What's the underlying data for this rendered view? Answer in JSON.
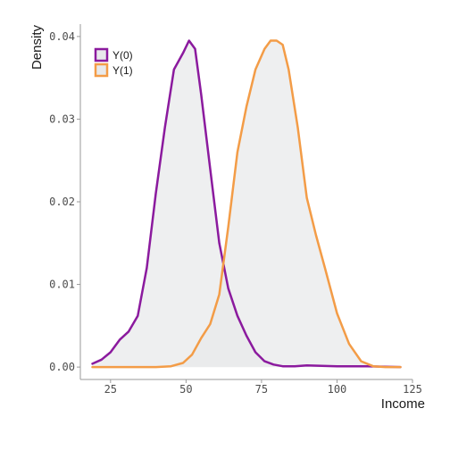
{
  "chart_data": {
    "type": "area",
    "xlabel": "Income",
    "ylabel": "Density",
    "xlim": [
      15,
      125
    ],
    "ylim": [
      -0.0015,
      0.0415
    ],
    "x_ticks": [
      25,
      50,
      75,
      100,
      125
    ],
    "y_ticks": [
      0.0,
      0.01,
      0.02,
      0.03,
      0.04
    ],
    "x_tick_labels": [
      "25",
      "50",
      "75",
      "100",
      "125"
    ],
    "y_tick_labels": [
      "0.00",
      "0.01",
      "0.02",
      "0.03",
      "0.04"
    ],
    "grid": false,
    "legend_position": "top-left",
    "series": [
      {
        "name": "Y(0)",
        "line_color": "#8B1A9E",
        "fill_color": "#e8e9eb",
        "x": [
          19,
          22,
          25,
          28,
          31,
          34,
          37,
          40,
          43,
          46,
          49,
          51,
          53,
          55,
          58,
          61,
          64,
          67,
          70,
          73,
          76,
          79,
          82,
          86,
          90,
          100,
          110,
          121
        ],
        "y": [
          0.0004,
          0.0009,
          0.0018,
          0.0033,
          0.0043,
          0.0062,
          0.012,
          0.021,
          0.029,
          0.036,
          0.038,
          0.0395,
          0.0385,
          0.033,
          0.024,
          0.015,
          0.0095,
          0.0062,
          0.0038,
          0.0018,
          0.0007,
          0.0003,
          0.0001,
          0.0001,
          0.0002,
          0.0001,
          0.0001,
          0.0
        ]
      },
      {
        "name": "Y(1)",
        "line_color": "#F39C47",
        "fill_color": "#e8e9eb",
        "x": [
          19,
          30,
          40,
          45,
          49,
          52,
          55,
          58,
          61,
          64,
          67,
          70,
          73,
          76,
          78,
          80,
          82,
          84,
          87,
          90,
          93,
          96,
          100,
          104,
          108,
          112,
          116,
          121
        ],
        "y": [
          0.0,
          0.0,
          0.0,
          0.0001,
          0.0005,
          0.0015,
          0.0035,
          0.0052,
          0.0088,
          0.017,
          0.026,
          0.0315,
          0.036,
          0.0385,
          0.0395,
          0.0395,
          0.039,
          0.036,
          0.029,
          0.0205,
          0.016,
          0.012,
          0.0065,
          0.0028,
          0.0007,
          0.0001,
          0.0,
          0.0
        ]
      }
    ]
  }
}
